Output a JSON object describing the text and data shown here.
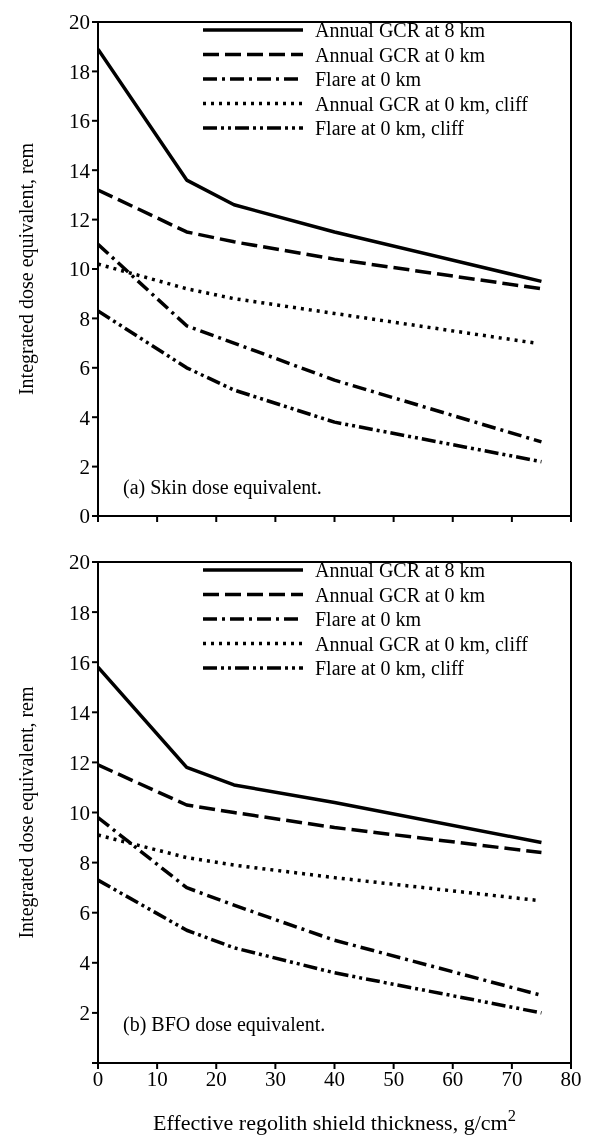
{
  "chart_data": [
    {
      "type": "line",
      "ylabel": "Integrated dose equivalent, rem",
      "annotations": [
        "(a)  Skin dose equivalent."
      ],
      "xlim": [
        0,
        80
      ],
      "xticks": [
        0,
        10,
        20,
        30,
        40,
        50,
        60,
        70,
        80
      ],
      "ylim": [
        0,
        20
      ],
      "yticks": [
        0,
        2,
        4,
        6,
        8,
        10,
        12,
        14,
        16,
        18,
        20
      ],
      "tick_labels": "y",
      "legend": "top right",
      "grid": false,
      "marker": "none",
      "x": [
        0,
        15,
        23,
        40,
        75
      ],
      "series": [
        {
          "name": "Annual GCR at 8 km",
          "color": "#000000",
          "line_style": "solid",
          "values": [
            18.9,
            13.6,
            12.6,
            11.5,
            9.5
          ]
        },
        {
          "name": "Annual GCR at 0 km",
          "color": "#000000",
          "line_style": "dashed",
          "values": [
            13.2,
            11.5,
            11.1,
            10.4,
            9.2
          ]
        },
        {
          "name": "Flare at 0 km",
          "color": "#000000",
          "line_style": "dashdot",
          "values": [
            11.0,
            7.7,
            7.0,
            5.5,
            3.0
          ]
        },
        {
          "name": "Annual GCR at 0 km, cliff",
          "color": "#000000",
          "line_style": "dotted",
          "x": [
            0,
            15,
            23,
            40,
            74
          ],
          "values": [
            10.2,
            9.2,
            8.8,
            8.2,
            7.0
          ]
        },
        {
          "name": "Flare at 0 km, cliff",
          "color": "#000000",
          "line_style": "dashdotdot",
          "values": [
            8.3,
            6.0,
            5.1,
            3.8,
            2.2
          ]
        }
      ]
    },
    {
      "type": "line",
      "xlabel": "Effective regolith shield thickness, g/cm$^{2}$",
      "ylabel": "Integrated dose equivalent, rem",
      "annotations": [
        "(b)  BFO dose equivalent."
      ],
      "xlim": [
        0,
        80
      ],
      "xticks": [
        0,
        10,
        20,
        30,
        40,
        50,
        60,
        70,
        80
      ],
      "ylim": [
        0,
        20
      ],
      "yticks": [
        {
          "value": 0,
          "label": null
        },
        2,
        4,
        6,
        8,
        10,
        12,
        14,
        16,
        18,
        20
      ],
      "legend": "top right",
      "grid": false,
      "marker": "none",
      "x": [
        0,
        15,
        23,
        40,
        75
      ],
      "series": [
        {
          "name": "Annual GCR at 8 km",
          "color": "#000000",
          "line_style": "solid",
          "values": [
            15.8,
            11.8,
            11.1,
            10.4,
            8.8
          ]
        },
        {
          "name": "Annual GCR at 0 km",
          "color": "#000000",
          "line_style": "dashed",
          "values": [
            11.9,
            10.3,
            10.0,
            9.4,
            8.4
          ]
        },
        {
          "name": "Flare at 0 km",
          "color": "#000000",
          "line_style": "dashdot",
          "values": [
            9.8,
            7.0,
            6.3,
            4.9,
            2.7
          ]
        },
        {
          "name": "Annual GCR at 0 km, cliff",
          "color": "#000000",
          "line_style": "dotted",
          "x": [
            0,
            15,
            23,
            40,
            74
          ],
          "values": [
            9.1,
            8.2,
            7.9,
            7.4,
            6.5
          ]
        },
        {
          "name": "Flare at 0 km, cliff",
          "color": "#000000",
          "line_style": "dashdotdot",
          "values": [
            7.3,
            5.3,
            4.6,
            3.6,
            2.0
          ]
        }
      ]
    }
  ]
}
